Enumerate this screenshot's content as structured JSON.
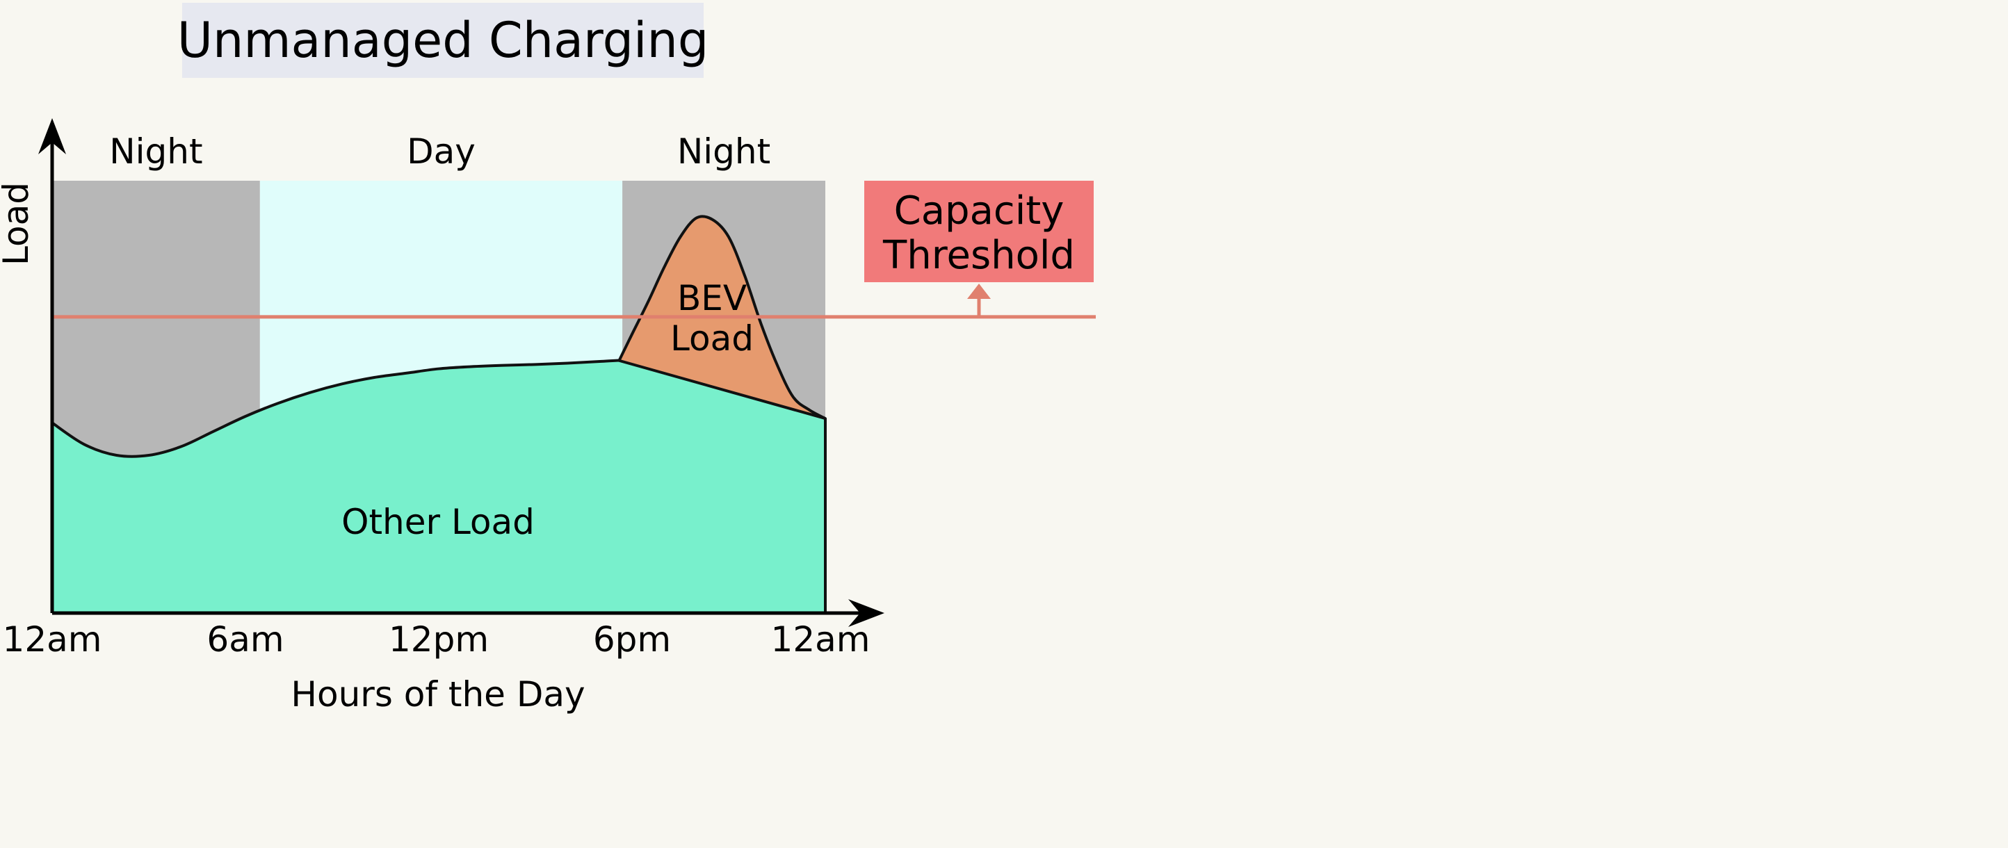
{
  "chart_data": {
    "type": "area",
    "title": "Unmanaged Charging",
    "xlabel": "Hours of the Day",
    "ylabel": "Load",
    "x_ticks": [
      "12am",
      "6am",
      "12pm",
      "6pm",
      "12am"
    ],
    "x_tick_values": [
      0,
      6,
      12,
      18,
      24
    ],
    "xlim": [
      0,
      24
    ],
    "ylim": [
      0,
      100
    ],
    "periods": [
      {
        "label": "Night",
        "start": 0,
        "end": 6.45,
        "color": "#b7b7b7"
      },
      {
        "label": "Day",
        "start": 6.45,
        "end": 17.7,
        "color": "#e0fdfb"
      },
      {
        "label": "Night",
        "start": 17.7,
        "end": 24,
        "color": "#b7b7b7"
      }
    ],
    "series": [
      {
        "name": "Other Load",
        "color": "#78f0cc",
        "x": [
          0,
          1,
          2,
          3,
          4,
          5,
          6,
          7,
          8,
          9,
          10,
          11,
          12,
          13,
          14,
          15,
          16,
          17,
          18,
          19,
          20,
          21,
          22,
          23,
          24
        ],
        "y": [
          44,
          39,
          36.5,
          36.5,
          38.5,
          42,
          45.5,
          48.5,
          51,
          53,
          54.5,
          55.5,
          56.5,
          57,
          57.3,
          57.5,
          57.8,
          58.2,
          58.5,
          58,
          56.5,
          54,
          51,
          48,
          45
        ]
      },
      {
        "name": "BEV Load",
        "color": "#e69a6e",
        "x": [
          17.6,
          18,
          18.5,
          19,
          19.5,
          20,
          20.5,
          21,
          21.5,
          22,
          22.5,
          23,
          23.5,
          24
        ],
        "y": [
          58.4,
          64.5,
          72,
          80,
          87,
          91.4,
          91,
          87,
          78,
          67,
          57.5,
          50,
          47,
          45
        ]
      }
    ],
    "threshold": {
      "label": "Capacity Threshold",
      "y": 68.5,
      "color": "#f17a7a",
      "line_color": "#e0806e"
    },
    "legend": "none",
    "grid": false
  }
}
